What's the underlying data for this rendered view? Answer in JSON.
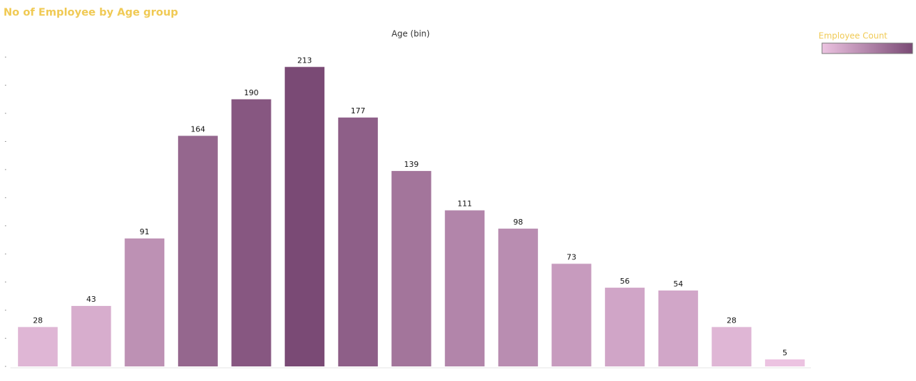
{
  "chart_data": {
    "type": "bar",
    "title": "No of Employee by Age group",
    "x_label": "Age (bin)",
    "legend_title": "Employee Count",
    "categories": [
      null,
      null,
      null,
      null,
      null,
      null,
      null,
      null,
      null,
      null,
      null,
      null,
      null,
      null,
      null
    ],
    "values": [
      28,
      43,
      91,
      164,
      190,
      213,
      177,
      139,
      111,
      98,
      73,
      56,
      54,
      28,
      5
    ],
    "color_range": [
      "#ecc3e1",
      "#7a4a75"
    ],
    "ylim": [
      0,
      225
    ],
    "yticks": [
      0,
      20,
      40,
      60,
      80,
      100,
      120,
      140,
      160,
      180,
      200,
      220
    ]
  }
}
